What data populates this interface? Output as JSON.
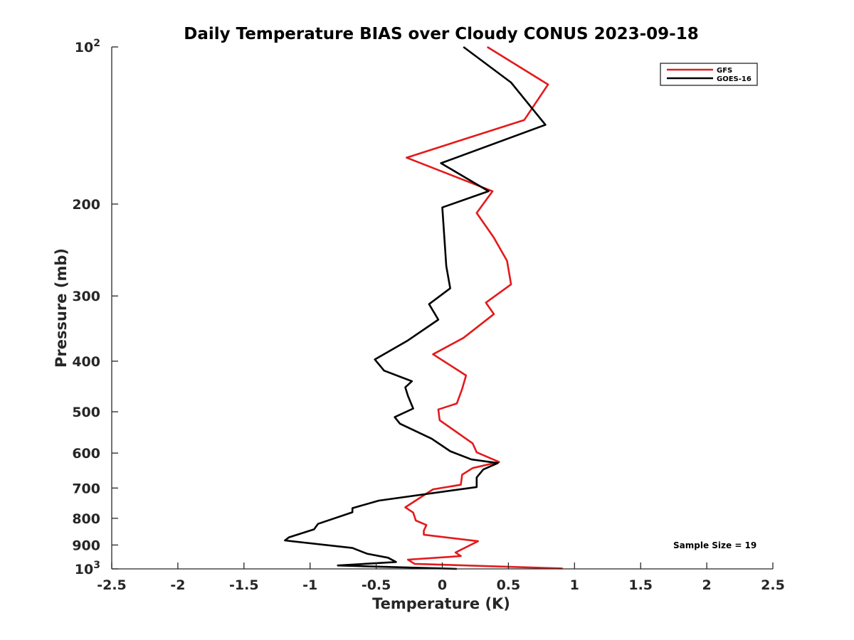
{
  "chart_data": {
    "type": "line",
    "title": "Daily Temperature BIAS over Cloudy CONUS 2023-09-18",
    "xlabel": "Temperature (K)",
    "ylabel": "Pressure (mb)",
    "xlim": [
      -2.5,
      2.5
    ],
    "ylim": [
      100,
      1000
    ],
    "y_scale": "log",
    "y_reversed": true,
    "grid": false,
    "legend_position": "top-right",
    "x_ticks": [
      -2.5,
      -2,
      -1.5,
      -1,
      -0.5,
      0,
      0.5,
      1,
      1.5,
      2,
      2.5
    ],
    "x_tick_labels": [
      "-2.5",
      "-2",
      "-1.5",
      "-1",
      "-0.5",
      "0",
      "0.5",
      "1",
      "1.5",
      "2",
      "2.5"
    ],
    "y_ticks": [
      100,
      200,
      300,
      400,
      500,
      600,
      700,
      800,
      900,
      1000
    ],
    "y_tick_labels": [
      {
        "base": "10",
        "exp": "2"
      },
      {
        "base": "200",
        "exp": ""
      },
      {
        "base": "300",
        "exp": ""
      },
      {
        "base": "400",
        "exp": ""
      },
      {
        "base": "500",
        "exp": ""
      },
      {
        "base": "600",
        "exp": ""
      },
      {
        "base": "700",
        "exp": ""
      },
      {
        "base": "800",
        "exp": ""
      },
      {
        "base": "900",
        "exp": ""
      },
      {
        "base": "10",
        "exp": "3"
      }
    ],
    "annotation": "Sample Size = 19",
    "series": [
      {
        "name": "GFS",
        "color": "#e31a1c",
        "points": [
          [
            0.34,
            100
          ],
          [
            0.8,
            118
          ],
          [
            0.62,
            138
          ],
          [
            -0.27,
            163
          ],
          [
            0.38,
            189
          ],
          [
            0.26,
            208
          ],
          [
            0.39,
            232
          ],
          [
            0.49,
            257
          ],
          [
            0.52,
            285
          ],
          [
            0.33,
            309
          ],
          [
            0.39,
            325
          ],
          [
            0.16,
            361
          ],
          [
            -0.07,
            388
          ],
          [
            0.18,
            426
          ],
          [
            0.15,
            452
          ],
          [
            0.11,
            482
          ],
          [
            -0.03,
            495
          ],
          [
            -0.02,
            519
          ],
          [
            0.23,
            575
          ],
          [
            0.26,
            598
          ],
          [
            0.43,
            624
          ],
          [
            0.23,
            641
          ],
          [
            0.15,
            660
          ],
          [
            0.14,
            690
          ],
          [
            -0.07,
            704
          ],
          [
            -0.28,
            762
          ],
          [
            -0.22,
            780
          ],
          [
            -0.2,
            808
          ],
          [
            -0.12,
            824
          ],
          [
            -0.14,
            845
          ],
          [
            -0.14,
            860
          ],
          [
            0.27,
            885
          ],
          [
            0.1,
            930
          ],
          [
            0.14,
            945
          ],
          [
            -0.26,
            960
          ],
          [
            -0.21,
            978
          ],
          [
            0.91,
            998
          ]
        ]
      },
      {
        "name": "GOES-16",
        "color": "#000000",
        "points": [
          [
            0.16,
            100
          ],
          [
            0.52,
            117
          ],
          [
            0.78,
            141
          ],
          [
            -0.01,
            167
          ],
          [
            0.35,
            189
          ],
          [
            0.0,
            203
          ],
          [
            0.03,
            263
          ],
          [
            0.06,
            290
          ],
          [
            -0.1,
            311
          ],
          [
            -0.03,
            333
          ],
          [
            -0.26,
            365
          ],
          [
            -0.51,
            397
          ],
          [
            -0.44,
            417
          ],
          [
            -0.23,
            437
          ],
          [
            -0.28,
            449
          ],
          [
            -0.26,
            466
          ],
          [
            -0.22,
            493
          ],
          [
            -0.36,
            512
          ],
          [
            -0.32,
            527
          ],
          [
            -0.08,
            563
          ],
          [
            0.06,
            595
          ],
          [
            0.22,
            617
          ],
          [
            0.42,
            627
          ],
          [
            0.31,
            645
          ],
          [
            0.26,
            668
          ],
          [
            0.26,
            697
          ],
          [
            -0.48,
            740
          ],
          [
            -0.68,
            765
          ],
          [
            -0.68,
            779
          ],
          [
            -0.94,
            820
          ],
          [
            -0.97,
            840
          ],
          [
            -1.16,
            870
          ],
          [
            -1.19,
            882
          ],
          [
            -0.68,
            912
          ],
          [
            -0.57,
            935
          ],
          [
            -0.41,
            952
          ],
          [
            -0.35,
            970
          ],
          [
            -0.79,
            985
          ],
          [
            0.11,
            1000
          ]
        ]
      }
    ]
  }
}
